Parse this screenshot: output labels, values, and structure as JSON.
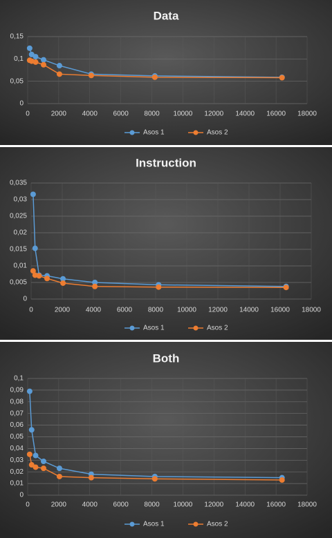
{
  "chart_data": [
    {
      "type": "line",
      "title": "Data",
      "x": [
        128,
        256,
        512,
        1024,
        2048,
        4096,
        8192,
        16384
      ],
      "series": [
        {
          "name": "Asos 1",
          "color": "#5b9bd5",
          "values": [
            0.124,
            0.11,
            0.105,
            0.098,
            0.085,
            0.066,
            0.062,
            0.059
          ]
        },
        {
          "name": "Asos 2",
          "color": "#ed7d31",
          "values": [
            0.097,
            0.095,
            0.093,
            0.087,
            0.066,
            0.063,
            0.059,
            0.058
          ]
        }
      ],
      "xlim": [
        0,
        18000
      ],
      "xticks": [
        0,
        2000,
        4000,
        6000,
        8000,
        10000,
        12000,
        14000,
        16000,
        18000
      ],
      "ylim": [
        0,
        0.15
      ],
      "yticks": [
        0,
        {
          "value": 0.05,
          "label": "0,05"
        },
        {
          "value": 0.1,
          "label": "0,1"
        },
        {
          "value": 0.15,
          "label": "0,15"
        }
      ],
      "grid": true,
      "legend": "bottom"
    },
    {
      "type": "line",
      "title": "Instruction",
      "x": [
        128,
        256,
        512,
        1024,
        2048,
        4096,
        8192,
        16384
      ],
      "series": [
        {
          "name": "Asos 1",
          "color": "#5b9bd5",
          "values": [
            0.0316,
            0.0153,
            0.0072,
            0.007,
            0.0061,
            0.005,
            0.0043,
            0.0038
          ]
        },
        {
          "name": "Asos 2",
          "color": "#ed7d31",
          "values": [
            0.0085,
            0.0072,
            0.007,
            0.0062,
            0.0048,
            0.0038,
            0.0036,
            0.0035
          ]
        }
      ],
      "xlim": [
        0,
        18000
      ],
      "xticks": [
        0,
        2000,
        4000,
        6000,
        8000,
        10000,
        12000,
        14000,
        16000,
        18000
      ],
      "ylim": [
        0,
        0.035
      ],
      "yticks": [
        0,
        {
          "value": 0.005,
          "label": "0,005"
        },
        {
          "value": 0.01,
          "label": "0,01"
        },
        {
          "value": 0.015,
          "label": "0,015"
        },
        {
          "value": 0.02,
          "label": "0,02"
        },
        {
          "value": 0.025,
          "label": "0,025"
        },
        {
          "value": 0.03,
          "label": "0,03"
        },
        {
          "value": 0.035,
          "label": "0,035"
        }
      ],
      "grid": true,
      "legend": "bottom"
    },
    {
      "type": "line",
      "title": "Both",
      "x": [
        128,
        256,
        512,
        1024,
        2048,
        4096,
        8192,
        16384
      ],
      "series": [
        {
          "name": "Asos 1",
          "color": "#5b9bd5",
          "values": [
            0.089,
            0.056,
            0.034,
            0.029,
            0.023,
            0.018,
            0.016,
            0.015
          ]
        },
        {
          "name": "Asos 2",
          "color": "#ed7d31",
          "values": [
            0.035,
            0.026,
            0.024,
            0.023,
            0.016,
            0.015,
            0.014,
            0.013
          ]
        }
      ],
      "xlim": [
        0,
        18000
      ],
      "xticks": [
        0,
        2000,
        4000,
        6000,
        8000,
        10000,
        12000,
        14000,
        16000,
        18000
      ],
      "ylim": [
        0,
        0.1
      ],
      "yticks": [
        0,
        {
          "value": 0.01,
          "label": "0,01"
        },
        {
          "value": 0.02,
          "label": "0,02"
        },
        {
          "value": 0.03,
          "label": "0,03"
        },
        {
          "value": 0.04,
          "label": "0,04"
        },
        {
          "value": 0.05,
          "label": "0,05"
        },
        {
          "value": 0.06,
          "label": "0,06"
        },
        {
          "value": 0.07,
          "label": "0,07"
        },
        {
          "value": 0.08,
          "label": "0,08"
        },
        {
          "value": 0.09,
          "label": "0,09"
        },
        {
          "value": 0.1,
          "label": "0,1"
        }
      ],
      "grid": true,
      "legend": "bottom"
    }
  ]
}
